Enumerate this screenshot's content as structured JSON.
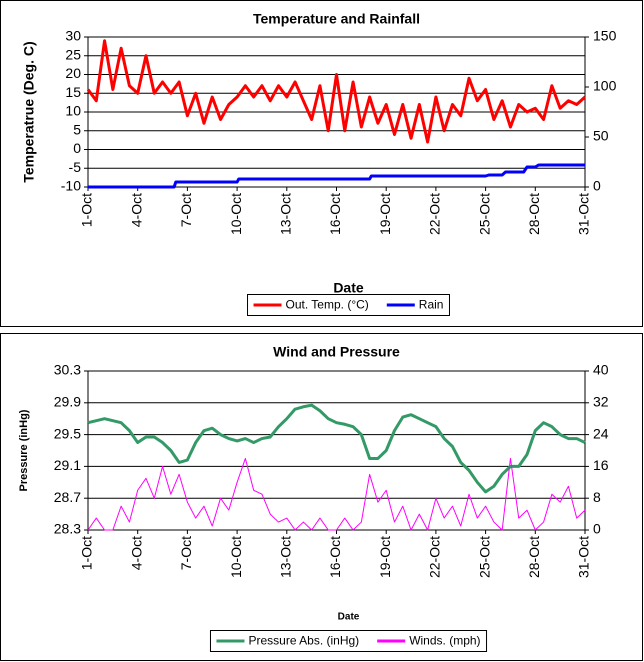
{
  "chart_data": [
    {
      "type": "line",
      "title": "Temperature and Rainfall",
      "x_label": "Date",
      "y_label": "Temperatrue (Deg. C)",
      "xlim": [
        1,
        31
      ],
      "xticks": [
        {
          "value": 1,
          "label": "1-Oct"
        },
        {
          "value": 4,
          "label": "4-Oct"
        },
        {
          "value": 7,
          "label": "7-Oct"
        },
        {
          "value": 10,
          "label": "10-Oct"
        },
        {
          "value": 13,
          "label": "13-Oct"
        },
        {
          "value": 16,
          "label": "16-Oct"
        },
        {
          "value": 19,
          "label": "19-Oct"
        },
        {
          "value": 22,
          "label": "22-Oct"
        },
        {
          "value": 25,
          "label": "25-Oct"
        },
        {
          "value": 28,
          "label": "28-Oct"
        },
        {
          "value": 31,
          "label": "31-Oct"
        }
      ],
      "ylim": [
        -10,
        30
      ],
      "yticks": [
        -10,
        -5,
        0,
        5,
        10,
        15,
        20,
        25,
        30
      ],
      "y2lim": [
        0,
        150
      ],
      "y2ticks": [
        0,
        50,
        100,
        150
      ],
      "grid": true,
      "legend": "bottom",
      "series": [
        {
          "name": "Out. Temp. (°C)",
          "color": "#ff0000",
          "axis": "y",
          "x": [
            1,
            1.5,
            2,
            2.5,
            3,
            3.5,
            4,
            4.5,
            5,
            5.5,
            6,
            6.5,
            7,
            7.5,
            8,
            8.5,
            9,
            9.5,
            10,
            10.5,
            11,
            11.5,
            12,
            12.5,
            13,
            13.5,
            14,
            14.5,
            15,
            15.5,
            16,
            16.5,
            17,
            17.5,
            18,
            18.5,
            19,
            19.5,
            20,
            20.5,
            21,
            21.5,
            22,
            22.5,
            23,
            23.5,
            24,
            24.5,
            25,
            25.5,
            26,
            26.5,
            27,
            27.5,
            28,
            28.5,
            29,
            29.5,
            30,
            30.5,
            31
          ],
          "values": [
            16,
            13,
            29,
            16,
            27,
            17,
            15,
            25,
            15,
            18,
            15,
            18,
            9,
            15,
            7,
            14,
            8,
            12,
            14,
            17,
            14,
            17,
            13,
            17,
            14,
            18,
            13,
            8,
            17,
            5,
            20,
            5,
            18,
            6,
            14,
            7,
            12,
            4,
            12,
            3,
            12,
            2,
            14,
            5,
            12,
            9,
            19,
            13,
            16,
            8,
            13,
            6,
            12,
            10,
            11,
            8,
            17,
            11,
            13,
            12,
            14
          ]
        },
        {
          "name": "Rain",
          "color": "#0000ff",
          "axis": "y2",
          "x": [
            1,
            6.2,
            6.3,
            10,
            10.1,
            18,
            18.1,
            25,
            25.2,
            26,
            26.2,
            27.3,
            27.5,
            28,
            28.2,
            31
          ],
          "values": [
            0,
            0,
            5,
            5,
            8,
            8,
            11,
            11,
            12,
            12,
            15,
            15,
            20,
            20,
            22,
            22
          ]
        }
      ]
    },
    {
      "type": "line",
      "title": "Wind and Pressure",
      "x_label": "Date",
      "y_label": "Pressure (inHg)",
      "xlim": [
        1,
        31
      ],
      "xticks": [
        {
          "value": 1,
          "label": "1-Oct"
        },
        {
          "value": 4,
          "label": "4-Oct"
        },
        {
          "value": 7,
          "label": "7-Oct"
        },
        {
          "value": 10,
          "label": "10-Oct"
        },
        {
          "value": 13,
          "label": "13-Oct"
        },
        {
          "value": 16,
          "label": "16-Oct"
        },
        {
          "value": 19,
          "label": "19-Oct"
        },
        {
          "value": 22,
          "label": "22-Oct"
        },
        {
          "value": 25,
          "label": "25-Oct"
        },
        {
          "value": 28,
          "label": "28-Oct"
        },
        {
          "value": 31,
          "label": "31-Oct"
        }
      ],
      "ylim": [
        28.3,
        30.3
      ],
      "yticks": [
        28.3,
        28.7,
        29.1,
        29.5,
        29.9,
        30.3
      ],
      "y2lim": [
        0,
        40
      ],
      "y2ticks": [
        0,
        8,
        16,
        24,
        32,
        40
      ],
      "grid": true,
      "legend": "bottom",
      "series": [
        {
          "name": "Pressure Abs. (inHg)",
          "color": "#339966",
          "axis": "y",
          "x": [
            1,
            2,
            3,
            3.5,
            4,
            4.5,
            5,
            5.5,
            6,
            6.5,
            7,
            7.5,
            8,
            8.5,
            9,
            9.5,
            10,
            10.5,
            11,
            11.5,
            12,
            12.5,
            13,
            13.5,
            14,
            14.5,
            15,
            15.5,
            16,
            16.5,
            17,
            17.5,
            18,
            18.5,
            19,
            19.5,
            20,
            20.5,
            21,
            21.5,
            22,
            22.5,
            23,
            23.5,
            24,
            24.5,
            25,
            25.5,
            26,
            26.5,
            27,
            27.5,
            28,
            28.5,
            29,
            29.5,
            30,
            30.5,
            31
          ],
          "values": [
            29.65,
            29.7,
            29.65,
            29.55,
            29.4,
            29.47,
            29.47,
            29.4,
            29.3,
            29.15,
            29.18,
            29.4,
            29.55,
            29.58,
            29.5,
            29.45,
            29.42,
            29.45,
            29.4,
            29.45,
            29.47,
            29.6,
            29.7,
            29.82,
            29.85,
            29.87,
            29.8,
            29.7,
            29.65,
            29.63,
            29.6,
            29.5,
            29.2,
            29.2,
            29.3,
            29.55,
            29.72,
            29.75,
            29.7,
            29.65,
            29.6,
            29.45,
            29.35,
            29.15,
            29.05,
            28.9,
            28.78,
            28.85,
            29,
            29.1,
            29.1,
            29.25,
            29.55,
            29.65,
            29.6,
            29.5,
            29.45,
            29.45,
            29.4
          ]
        },
        {
          "name": "Winds. (mph)",
          "color": "#ff00ff",
          "axis": "y2",
          "x": [
            1,
            1.5,
            2,
            2.5,
            3,
            3.5,
            4,
            4.5,
            5,
            5.5,
            6,
            6.5,
            7,
            7.5,
            8,
            8.5,
            9,
            9.5,
            10,
            10.5,
            11,
            11.5,
            12,
            12.5,
            13,
            13.5,
            14,
            14.5,
            15,
            15.5,
            16,
            16.5,
            17,
            17.5,
            18,
            18.5,
            19,
            19.5,
            20,
            20.5,
            21,
            21.5,
            22,
            22.5,
            23,
            23.5,
            24,
            24.5,
            25,
            25.5,
            26,
            26.5,
            27,
            27.5,
            28,
            28.5,
            29,
            29.5,
            30,
            30.5,
            31
          ],
          "values": [
            0,
            3,
            0,
            0,
            6,
            2,
            10,
            13,
            8,
            16,
            9,
            14,
            7,
            3,
            6,
            1,
            8,
            5,
            12,
            18,
            10,
            9,
            4,
            2,
            3,
            0,
            2,
            0,
            3,
            0,
            0,
            3,
            0,
            2,
            14,
            7,
            10,
            2,
            6,
            0,
            4,
            0,
            8,
            3,
            6,
            1,
            9,
            3,
            6,
            2,
            0,
            18,
            3,
            5,
            0,
            2,
            9,
            7,
            11,
            3,
            5
          ]
        }
      ]
    }
  ]
}
